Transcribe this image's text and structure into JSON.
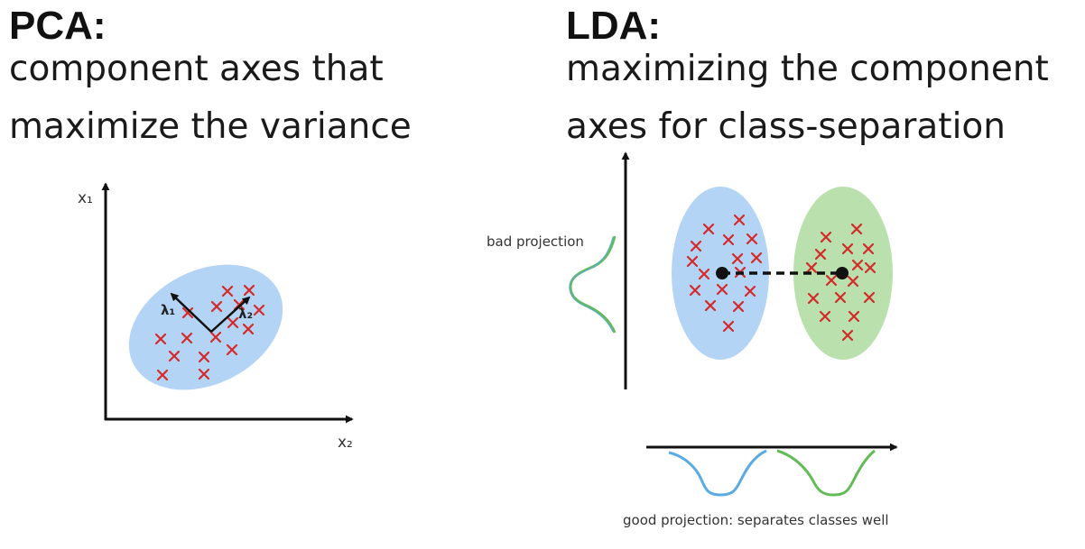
{
  "pca": {
    "title": "PCA:",
    "subtitle_lines": [
      "component axes that",
      "maximize the variance"
    ],
    "axis_y_label": "x₁",
    "axis_x_label": "x₂",
    "vector_1_label": "λ₁",
    "vector_2_label": "λ₂"
  },
  "lda": {
    "title": "LDA:",
    "subtitle_lines": [
      "maximizing the component",
      "axes for class-separation"
    ],
    "bad_projection_label": "bad projection",
    "good_projection_label": "good projection: separates classes well"
  },
  "colors": {
    "class_blue": "#b3d4f4",
    "class_green": "#b9e0ad",
    "marker_red": "#d42a2a",
    "curve_blue": "#5aaae3",
    "curve_green": "#62bb56",
    "axis": "#111111"
  },
  "icons": {
    "cross_marker": "x-marker-icon",
    "class_mean": "filled-dot-icon",
    "arrow": "arrowhead-icon"
  }
}
